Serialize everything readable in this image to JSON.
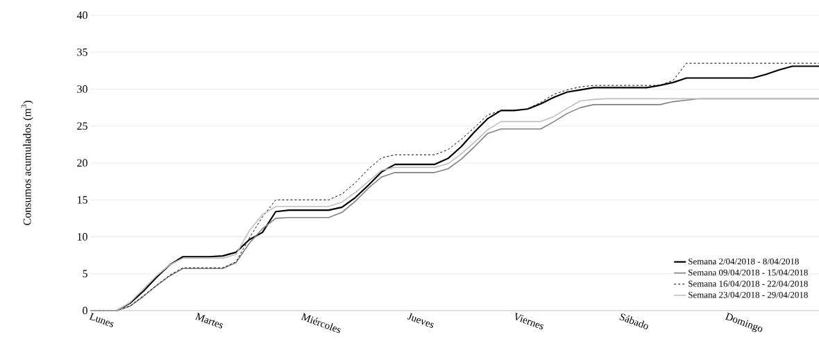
{
  "chart_data": {
    "type": "line",
    "ylabel": "Consumos acumulados (m$^{3}$)",
    "categories": [
      "Lunes",
      null,
      null,
      null,
      null,
      null,
      null,
      null,
      "Martes",
      null,
      null,
      null,
      null,
      null,
      null,
      null,
      "Miércoles",
      null,
      null,
      null,
      null,
      null,
      null,
      null,
      "Jueves",
      null,
      null,
      null,
      null,
      null,
      null,
      null,
      "Viernes",
      null,
      null,
      null,
      null,
      null,
      null,
      null,
      "Sábado",
      null,
      null,
      null,
      null,
      null,
      null,
      null,
      "Domingo",
      null,
      null,
      null,
      null,
      null,
      null,
      null
    ],
    "ylim": [
      0,
      40
    ],
    "yticks": [
      0,
      5,
      10,
      15,
      20,
      25,
      30,
      35,
      40
    ],
    "grid": "y",
    "legend": "bottom right",
    "marker": "none",
    "series": [
      {
        "name": "Semana 2/04/2018 - 8/04/2018",
        "color": "#000000",
        "line_style": "solid",
        "values": [
          0,
          0,
          0,
          1.0,
          2.6,
          4.5,
          6.2,
          7.3,
          7.3,
          7.3,
          7.4,
          7.9,
          9.6,
          10.6,
          13.4,
          13.6,
          13.6,
          13.6,
          13.6,
          14.0,
          15.3,
          17.0,
          18.8,
          19.8,
          19.8,
          19.8,
          19.8,
          20.6,
          22.2,
          24.2,
          26.0,
          27.1,
          27.1,
          27.3,
          28.0,
          28.9,
          29.6,
          29.9,
          30.2,
          30.2,
          30.2,
          30.2,
          30.2,
          30.5,
          30.9,
          31.5,
          31.5,
          31.5,
          31.5,
          31.5,
          31.5,
          32.0,
          32.6,
          33.1,
          33.1,
          33.1
        ]
      },
      {
        "name": "Semana 09/04/2018 - 15/04/2018",
        "color": "#808080",
        "line_style": "solid",
        "values": [
          0,
          0,
          0,
          0.6,
          1.9,
          3.4,
          4.7,
          5.7,
          5.7,
          5.7,
          5.7,
          6.5,
          9.1,
          11.1,
          12.5,
          12.6,
          12.6,
          12.6,
          12.6,
          13.3,
          14.8,
          16.6,
          18.1,
          18.7,
          18.7,
          18.7,
          18.7,
          19.2,
          20.5,
          22.2,
          24.0,
          24.6,
          24.6,
          24.6,
          24.6,
          25.6,
          26.7,
          27.5,
          27.9,
          27.9,
          27.9,
          27.9,
          27.9,
          27.9,
          28.3,
          28.5,
          28.7,
          28.7,
          28.7,
          28.7,
          28.7,
          28.7,
          28.7,
          28.7,
          28.7,
          28.7
        ]
      },
      {
        "name": "Semana 16/04/2018 - 22/04/2018",
        "color": "#000000",
        "line_style": "dashed",
        "values": [
          0,
          0,
          0,
          0.6,
          2.0,
          3.4,
          4.8,
          5.8,
          5.8,
          5.8,
          5.8,
          6.6,
          9.8,
          12.7,
          15.0,
          15.0,
          15.0,
          15.0,
          15.0,
          15.8,
          17.3,
          19.2,
          20.7,
          21.1,
          21.1,
          21.1,
          21.1,
          21.8,
          23.2,
          24.8,
          26.5,
          27.1,
          27.1,
          27.3,
          28.2,
          29.3,
          29.9,
          30.3,
          30.5,
          30.5,
          30.5,
          30.5,
          30.5,
          30.5,
          31.2,
          33.5,
          33.5,
          33.5,
          33.5,
          33.5,
          33.5,
          33.5,
          33.5,
          33.5,
          33.5,
          33.5
        ]
      },
      {
        "name": "Semana 23/04/2018 - 29/04/2018",
        "color": "#bfbfbf",
        "line_style": "solid",
        "values": [
          0,
          0,
          0,
          1.1,
          2.9,
          4.7,
          6.2,
          7.1,
          7.1,
          7.1,
          7.1,
          7.6,
          10.8,
          13.0,
          14.1,
          14.1,
          14.1,
          14.1,
          14.1,
          14.7,
          16.0,
          17.5,
          19.0,
          19.4,
          19.4,
          19.4,
          19.4,
          19.9,
          21.2,
          22.8,
          24.5,
          25.6,
          25.6,
          25.6,
          25.6,
          26.3,
          27.4,
          28.4,
          28.6,
          28.7,
          28.7,
          28.7,
          28.7,
          28.7,
          28.7,
          28.7,
          28.7,
          28.7,
          28.7,
          28.7,
          28.7,
          28.7,
          28.7,
          28.7,
          28.7,
          28.7
        ]
      }
    ]
  }
}
